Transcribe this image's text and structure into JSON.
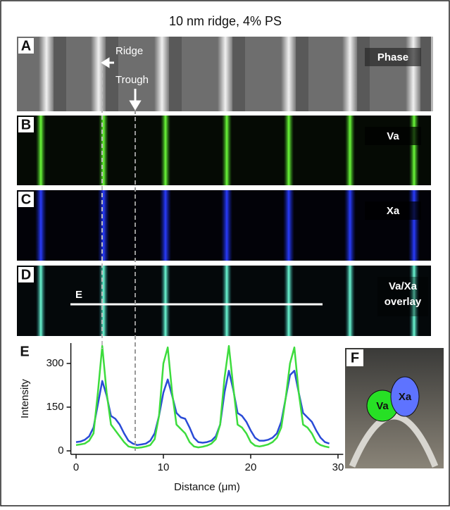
{
  "title": "10 nm ridge, 4% PS",
  "panels": [
    {
      "letter": "A",
      "label": "Phase"
    },
    {
      "letter": "B",
      "label": "Va"
    },
    {
      "letter": "C",
      "label": "Xa"
    },
    {
      "letter": "D",
      "label": [
        "Va/Xa",
        "overlay"
      ]
    }
  ],
  "annotations": {
    "ridge": "Ridge",
    "trough": "Trough",
    "line_label": "E"
  },
  "chart_data": {
    "type": "line",
    "panel": "E",
    "xlabel": "Distance (μm)",
    "ylabel": "Intensity",
    "x": [
      0,
      0.5,
      1,
      1.5,
      2,
      2.5,
      3,
      3.5,
      4,
      4.5,
      5,
      5.5,
      6,
      6.5,
      7,
      7.5,
      8,
      8.5,
      9,
      9.5,
      10,
      10.5,
      11,
      11.5,
      12,
      12.5,
      13,
      13.5,
      14,
      14.5,
      15,
      15.5,
      16,
      16.5,
      17,
      17.5,
      18,
      18.5,
      19,
      19.5,
      20,
      20.5,
      21,
      21.5,
      22,
      22.5,
      23,
      23.5,
      24,
      24.5,
      25,
      25.5,
      26,
      26.5,
      27,
      27.5,
      28,
      28.5,
      29
    ],
    "series": [
      {
        "color": "#2a4bd7",
        "values": [
          30,
          32,
          38,
          50,
          80,
          160,
          240,
          190,
          120,
          110,
          90,
          60,
          35,
          25,
          20,
          22,
          25,
          35,
          60,
          120,
          200,
          245,
          190,
          130,
          115,
          110,
          80,
          45,
          30,
          28,
          30,
          35,
          50,
          90,
          200,
          275,
          210,
          130,
          120,
          100,
          70,
          45,
          35,
          35,
          38,
          45,
          60,
          100,
          180,
          260,
          275,
          200,
          130,
          115,
          100,
          70,
          45,
          30,
          25
        ]
      },
      {
        "color": "#3ddc3d",
        "values": [
          20,
          22,
          25,
          35,
          60,
          200,
          360,
          200,
          90,
          70,
          50,
          30,
          15,
          12,
          10,
          12,
          15,
          20,
          40,
          120,
          300,
          355,
          200,
          90,
          75,
          60,
          30,
          15,
          12,
          14,
          18,
          25,
          40,
          90,
          250,
          360,
          220,
          90,
          80,
          60,
          30,
          18,
          15,
          18,
          22,
          30,
          45,
          80,
          180,
          300,
          355,
          200,
          90,
          80,
          60,
          30,
          20,
          15,
          12
        ]
      }
    ],
    "xlim": [
      -0.6,
      30.6
    ],
    "ylim": [
      -12,
      370
    ],
    "xticks": [
      0,
      10,
      20,
      30
    ],
    "yticks": [
      0,
      150,
      300
    ]
  },
  "schematic": {
    "panel": "F",
    "labels": [
      "Va",
      "Xa"
    ]
  }
}
